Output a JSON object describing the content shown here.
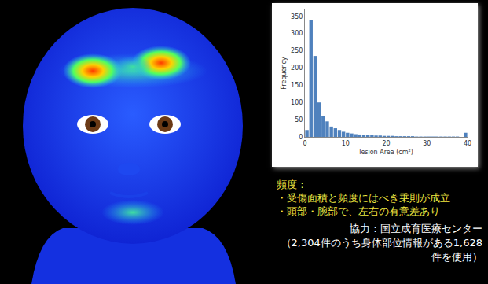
{
  "chart_data": {
    "type": "bar",
    "x_label": "lesion Area (cm²)",
    "y_label": "Frequency",
    "bins": [
      0,
      1,
      2,
      3,
      4,
      5,
      6,
      7,
      8,
      9,
      10,
      11,
      12,
      13,
      14,
      15,
      16,
      17,
      18,
      19,
      20,
      21,
      22,
      23,
      24,
      25,
      26,
      27,
      28,
      29,
      30,
      31,
      32,
      33,
      34,
      35,
      36,
      37,
      38,
      39,
      40
    ],
    "values": [
      20,
      340,
      235,
      100,
      60,
      45,
      30,
      25,
      20,
      15,
      12,
      10,
      8,
      7,
      6,
      5,
      5,
      4,
      4,
      3,
      3,
      3,
      2,
      2,
      2,
      2,
      2,
      1,
      1,
      1,
      1,
      1,
      1,
      1,
      1,
      1,
      1,
      1,
      0,
      12
    ],
    "color": "#4f81bd",
    "xlim": [
      0,
      40
    ],
    "xticks": [
      0,
      10,
      20,
      30,
      40
    ],
    "ylim": [
      0,
      370
    ],
    "yticks": [
      0,
      50,
      100,
      150,
      200,
      250,
      300,
      350
    ],
    "grid": false
  },
  "notes": {
    "heading": "頻度：",
    "items": [
      "・受傷面積と頻度にはべき乗則が成立",
      "・頭部・腕部で、左右の有意差あり"
    ]
  },
  "credit": {
    "line1": "協力：国立成育医療センター",
    "line2": "（2,304件のうち身体部位情報がある1,628件を使用）"
  }
}
